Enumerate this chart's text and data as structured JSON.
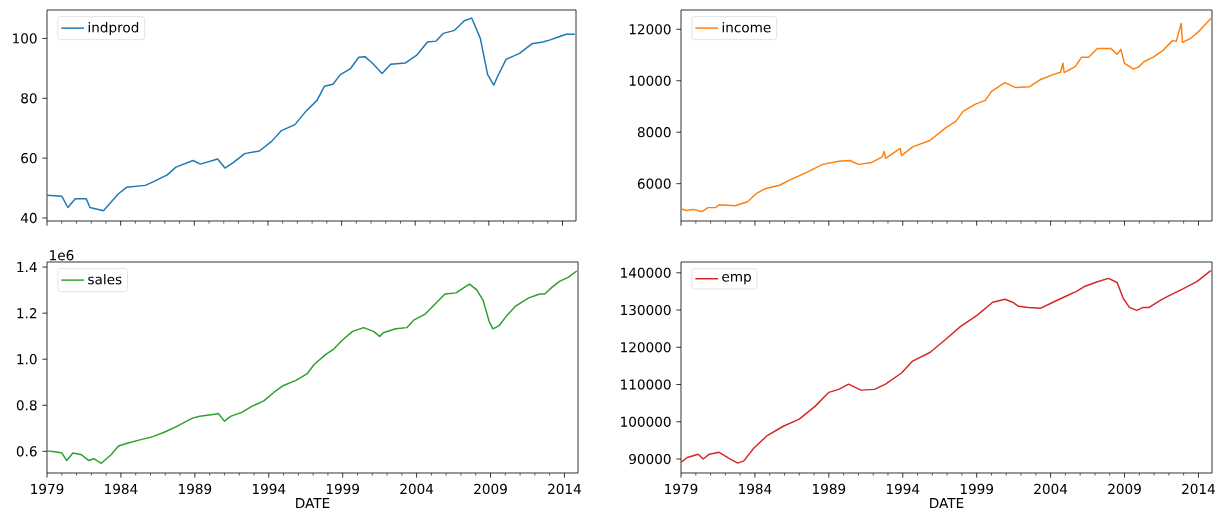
{
  "chart_data": [
    {
      "type": "line",
      "legend": "top left",
      "tick_labels": "y",
      "xlim": [
        "1979-01",
        "2014-12"
      ],
      "ylim": [
        39,
        109.5
      ],
      "yticks": [
        40,
        60,
        80,
        100
      ],
      "xticks": [
        "1979",
        {
          "value": "1980",
          "label": null
        },
        {
          "value": "1981",
          "label": null
        },
        {
          "value": "1982",
          "label": null
        },
        {
          "value": "1983",
          "label": null
        },
        "1984",
        {
          "value": "1985",
          "label": null
        },
        {
          "value": "1986",
          "label": null
        },
        {
          "value": "1987",
          "label": null
        },
        {
          "value": "1988",
          "label": null
        },
        "1989",
        {
          "value": "1990",
          "label": null
        },
        {
          "value": "1991",
          "label": null
        },
        {
          "value": "1992",
          "label": null
        },
        {
          "value": "1993",
          "label": null
        },
        "1994",
        {
          "value": "1995",
          "label": null
        },
        {
          "value": "1996",
          "label": null
        },
        {
          "value": "1997",
          "label": null
        },
        {
          "value": "1998",
          "label": null
        },
        "1999",
        {
          "value": "2000",
          "label": null
        },
        {
          "value": "2001",
          "label": null
        },
        {
          "value": "2002",
          "label": null
        },
        {
          "value": "2003",
          "label": null
        },
        "2004",
        {
          "value": "2005",
          "label": null
        },
        {
          "value": "2006",
          "label": null
        },
        {
          "value": "2007",
          "label": null
        },
        {
          "value": "2008",
          "label": null
        },
        "2009",
        {
          "value": "2010",
          "label": null
        },
        {
          "value": "2011",
          "label": null
        },
        {
          "value": "2012",
          "label": null
        },
        {
          "value": "2013",
          "label": null
        },
        "2014"
      ],
      "x": [
        "1979-01",
        "1980-01",
        "1980-06",
        "1980-12",
        "1981-09",
        "1981-12",
        "1982-11",
        "1983-11",
        "1984-06",
        "1985-09",
        "1986-03",
        "1987-03",
        "1987-10",
        "1988-12",
        "1989-06",
        "1990-08",
        "1991-02",
        "1991-09",
        "1992-06",
        "1993-06",
        "1994-04",
        "1994-12",
        "1995-11",
        "1996-08",
        "1997-05",
        "1997-11",
        "1998-06",
        "1998-12",
        "1999-08",
        "2000-03",
        "2000-08",
        "2001-02",
        "2001-10",
        "2002-05",
        "2003-05",
        "2004-02",
        "2004-11",
        "2005-06",
        "2005-12",
        "2006-09",
        "2007-05",
        "2007-11",
        "2008-06",
        "2008-12",
        "2009-05",
        "2009-08",
        "2010-03",
        "2011-02",
        "2011-12",
        "2012-09",
        "2013-03",
        "2013-09",
        "2014-04",
        "2014-11"
      ],
      "series": [
        {
          "name": "indprod",
          "color": "#1f77b4",
          "values": [
            47.6,
            47.3,
            43.5,
            46.4,
            46.4,
            43.5,
            42.4,
            48.0,
            50.3,
            50.9,
            52.0,
            54.4,
            57.0,
            59.2,
            58.0,
            59.7,
            56.7,
            58.6,
            61.5,
            62.4,
            65.6,
            69.2,
            71.2,
            75.7,
            79.3,
            84.0,
            84.7,
            87.9,
            89.8,
            93.7,
            93.9,
            91.8,
            88.3,
            91.4,
            91.8,
            94.3,
            98.8,
            99.1,
            101.7,
            102.7,
            105.9,
            106.8,
            100.1,
            87.9,
            84.4,
            87.2,
            93.0,
            95.0,
            98.2,
            98.8,
            99.5,
            100.4,
            101.4,
            101.4
          ]
        }
      ]
    },
    {
      "type": "line",
      "legend": "top left",
      "tick_labels": "y",
      "xlim": [
        "1979-01",
        "2014-12"
      ],
      "ylim": [
        4550,
        12750
      ],
      "yticks": [
        6000,
        8000,
        10000,
        12000
      ],
      "xticks": [
        "1979",
        {
          "value": "1980",
          "label": null
        },
        {
          "value": "1981",
          "label": null
        },
        {
          "value": "1982",
          "label": null
        },
        {
          "value": "1983",
          "label": null
        },
        "1984",
        {
          "value": "1985",
          "label": null
        },
        {
          "value": "1986",
          "label": null
        },
        {
          "value": "1987",
          "label": null
        },
        {
          "value": "1988",
          "label": null
        },
        "1989",
        {
          "value": "1990",
          "label": null
        },
        {
          "value": "1991",
          "label": null
        },
        {
          "value": "1992",
          "label": null
        },
        {
          "value": "1993",
          "label": null
        },
        "1994",
        {
          "value": "1995",
          "label": null
        },
        {
          "value": "1996",
          "label": null
        },
        {
          "value": "1997",
          "label": null
        },
        {
          "value": "1998",
          "label": null
        },
        "1999",
        {
          "value": "2000",
          "label": null
        },
        {
          "value": "2001",
          "label": null
        },
        {
          "value": "2002",
          "label": null
        },
        {
          "value": "2003",
          "label": null
        },
        "2004",
        {
          "value": "2005",
          "label": null
        },
        {
          "value": "2006",
          "label": null
        },
        {
          "value": "2007",
          "label": null
        },
        {
          "value": "2008",
          "label": null
        },
        "2009",
        {
          "value": "2010",
          "label": null
        },
        {
          "value": "2011",
          "label": null
        },
        {
          "value": "2012",
          "label": null
        },
        {
          "value": "2013",
          "label": null
        },
        "2014"
      ],
      "x": [
        "1979-01",
        "1979-05",
        "1979-11",
        "1980-06",
        "1980-11",
        "1981-05",
        "1981-08",
        "1982-09",
        "1983-07",
        "1984-02",
        "1984-09",
        "1985-09",
        "1986-06",
        "1987-07",
        "1988-08",
        "1989-09",
        "1990-06",
        "1991-01",
        "1991-11",
        "1992-08",
        "1992-10",
        "1992-11",
        "1993-11",
        "1993-12",
        "1994-09",
        "1995-11",
        "1996-12",
        "1997-08",
        "1998-02",
        "1998-12",
        "1999-08",
        "2000-01",
        "2000-12",
        "2001-08",
        "2002-08",
        "2003-05",
        "2004-03",
        "2004-09",
        "2004-11",
        "2004-12",
        "2005-09",
        "2006-02",
        "2006-08",
        "2007-03",
        "2008-02",
        "2008-07",
        "2008-10",
        "2009-01",
        "2009-08",
        "2009-12",
        "2010-05",
        "2010-12",
        "2011-08",
        "2012-04",
        "2012-07",
        "2012-11",
        "2012-12",
        "2013-07",
        "2014-02",
        "2014-12"
      ],
      "series": [
        {
          "name": "income",
          "color": "#ff7f0e",
          "values": [
            5030,
            4960,
            5000,
            4910,
            5070,
            5070,
            5180,
            5140,
            5300,
            5610,
            5800,
            5940,
            6160,
            6440,
            6750,
            6870,
            6900,
            6750,
            6810,
            7030,
            7250,
            6980,
            7370,
            7090,
            7430,
            7680,
            8180,
            8420,
            8810,
            9090,
            9240,
            9590,
            9930,
            9740,
            9770,
            10050,
            10240,
            10330,
            10680,
            10320,
            10550,
            10910,
            10910,
            11250,
            11250,
            11030,
            11220,
            10680,
            10460,
            10520,
            10750,
            10910,
            11170,
            11560,
            11530,
            12230,
            11490,
            11660,
            11950,
            12470
          ]
        }
      ]
    },
    {
      "type": "line",
      "legend": "top left",
      "xlabel": "DATE",
      "annotations": [
        "1e6"
      ],
      "xlim": [
        "1979-01",
        "2014-12"
      ],
      "ylim": [
        0.506,
        1.422
      ],
      "yticks": [
        0.6,
        0.8,
        {
          "value": 1,
          "label": "1.0"
        },
        1.2,
        1.4
      ],
      "xticks": [
        "1979",
        {
          "value": "1980",
          "label": null
        },
        {
          "value": "1981",
          "label": null
        },
        {
          "value": "1982",
          "label": null
        },
        {
          "value": "1983",
          "label": null
        },
        "1984",
        {
          "value": "1985",
          "label": null
        },
        {
          "value": "1986",
          "label": null
        },
        {
          "value": "1987",
          "label": null
        },
        {
          "value": "1988",
          "label": null
        },
        "1989",
        {
          "value": "1990",
          "label": null
        },
        {
          "value": "1991",
          "label": null
        },
        {
          "value": "1992",
          "label": null
        },
        {
          "value": "1993",
          "label": null
        },
        "1994",
        {
          "value": "1995",
          "label": null
        },
        {
          "value": "1996",
          "label": null
        },
        {
          "value": "1997",
          "label": null
        },
        {
          "value": "1998",
          "label": null
        },
        "1999",
        {
          "value": "2000",
          "label": null
        },
        {
          "value": "2001",
          "label": null
        },
        {
          "value": "2002",
          "label": null
        },
        {
          "value": "2003",
          "label": null
        },
        "2004",
        {
          "value": "2005",
          "label": null
        },
        {
          "value": "2006",
          "label": null
        },
        {
          "value": "2007",
          "label": null
        },
        {
          "value": "2008",
          "label": null
        },
        "2009",
        {
          "value": "2010",
          "label": null
        },
        {
          "value": "2011",
          "label": null
        },
        {
          "value": "2012",
          "label": null
        },
        {
          "value": "2013",
          "label": null
        },
        "2014"
      ],
      "x": [
        "1979-01",
        "1979-09",
        "1980-01",
        "1980-05",
        "1980-10",
        "1981-05",
        "1981-11",
        "1982-03",
        "1982-09",
        "1983-05",
        "1983-11",
        "1984-06",
        "1985-06",
        "1986-03",
        "1987-01",
        "1987-10",
        "1988-11",
        "1989-05",
        "1990-05",
        "1990-08",
        "1991-01",
        "1991-06",
        "1992-03",
        "1992-12",
        "1993-09",
        "1994-07",
        "1995-01",
        "1995-11",
        "1996-08",
        "1997-02",
        "1997-11",
        "1998-06",
        "1998-12",
        "1999-09",
        "2000-06",
        "2001-02",
        "2001-07",
        "2001-10",
        "2002-08",
        "2003-05",
        "2003-11",
        "2004-08",
        "2005-02",
        "2005-12",
        "2006-09",
        "2007-05",
        "2007-08",
        "2008-02",
        "2008-07",
        "2008-12",
        "2009-03",
        "2009-08",
        "2010-02",
        "2010-09",
        "2011-08",
        "2012-05",
        "2012-09",
        "2013-03",
        "2013-09",
        "2014-04",
        "2014-11"
      ],
      "series": [
        {
          "name": "sales",
          "color": "#2ca02c",
          "values": [
            0.602,
            0.597,
            0.593,
            0.56,
            0.593,
            0.585,
            0.56,
            0.568,
            0.548,
            0.585,
            0.623,
            0.635,
            0.652,
            0.664,
            0.685,
            0.707,
            0.744,
            0.752,
            0.761,
            0.764,
            0.731,
            0.752,
            0.769,
            0.797,
            0.819,
            0.864,
            0.886,
            0.908,
            0.936,
            0.978,
            1.02,
            1.045,
            1.079,
            1.121,
            1.137,
            1.121,
            1.099,
            1.115,
            1.132,
            1.137,
            1.171,
            1.196,
            1.229,
            1.283,
            1.288,
            1.316,
            1.326,
            1.3,
            1.255,
            1.162,
            1.132,
            1.146,
            1.188,
            1.229,
            1.266,
            1.283,
            1.283,
            1.313,
            1.338,
            1.355,
            1.383
          ]
        }
      ]
    },
    {
      "type": "line",
      "legend": "top left",
      "xlabel": "DATE",
      "xlim": [
        "1979-01",
        "2014-12"
      ],
      "ylim": [
        86250,
        142900
      ],
      "yticks": [
        90000,
        100000,
        110000,
        120000,
        130000,
        140000
      ],
      "xticks": [
        "1979",
        {
          "value": "1980",
          "label": null
        },
        {
          "value": "1981",
          "label": null
        },
        {
          "value": "1982",
          "label": null
        },
        {
          "value": "1983",
          "label": null
        },
        "1984",
        {
          "value": "1985",
          "label": null
        },
        {
          "value": "1986",
          "label": null
        },
        {
          "value": "1987",
          "label": null
        },
        {
          "value": "1988",
          "label": null
        },
        "1989",
        {
          "value": "1990",
          "label": null
        },
        {
          "value": "1991",
          "label": null
        },
        {
          "value": "1992",
          "label": null
        },
        {
          "value": "1993",
          "label": null
        },
        "1994",
        {
          "value": "1995",
          "label": null
        },
        {
          "value": "1996",
          "label": null
        },
        {
          "value": "1997",
          "label": null
        },
        {
          "value": "1998",
          "label": null
        },
        "1999",
        {
          "value": "2000",
          "label": null
        },
        {
          "value": "2001",
          "label": null
        },
        {
          "value": "2002",
          "label": null
        },
        {
          "value": "2003",
          "label": null
        },
        "2004",
        {
          "value": "2005",
          "label": null
        },
        {
          "value": "2006",
          "label": null
        },
        {
          "value": "2007",
          "label": null
        },
        {
          "value": "2008",
          "label": null
        },
        "2009",
        {
          "value": "2010",
          "label": null
        },
        {
          "value": "2011",
          "label": null
        },
        {
          "value": "2012",
          "label": null
        },
        {
          "value": "2013",
          "label": null
        },
        "2014"
      ],
      "x": [
        "1979-01",
        "1979-06",
        "1980-03",
        "1980-07",
        "1980-12",
        "1981-08",
        "1982-03",
        "1982-11",
        "1983-04",
        "1983-12",
        "1984-11",
        "1985-12",
        "1987-01",
        "1988-02",
        "1989-01",
        "1989-09",
        "1990-05",
        "1991-03",
        "1992-02",
        "1992-11",
        "1993-12",
        "1994-09",
        "1995-11",
        "1996-11",
        "1997-12",
        "1999-01",
        "2000-02",
        "2000-12",
        "2001-06",
        "2001-11",
        "2002-07",
        "2003-05",
        "2004-03",
        "2004-12",
        "2005-10",
        "2006-05",
        "2007-03",
        "2007-12",
        "2008-07",
        "2008-12",
        "2009-05",
        "2009-11",
        "2010-04",
        "2010-09",
        "2011-06",
        "2012-02",
        "2012-12",
        "2013-12",
        "2014-11"
      ],
      "series": [
        {
          "name": "emp",
          "color": "#d62728",
          "values": [
            89100,
            90400,
            91300,
            90000,
            91300,
            91800,
            90400,
            88900,
            89500,
            92900,
            96300,
            98800,
            100700,
            104200,
            107900,
            108700,
            110100,
            108500,
            108700,
            110100,
            113100,
            116300,
            118600,
            121900,
            125600,
            128500,
            132100,
            132900,
            132100,
            131000,
            130700,
            130500,
            132100,
            133500,
            135000,
            136400,
            137600,
            138500,
            137400,
            133100,
            130700,
            129900,
            130700,
            130700,
            132600,
            134000,
            135600,
            137700,
            140600
          ]
        }
      ]
    }
  ]
}
